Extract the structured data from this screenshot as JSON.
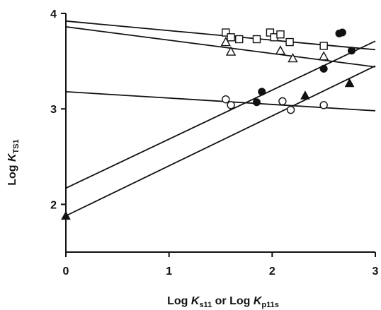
{
  "chart_data": {
    "type": "scatter",
    "xlabel": {
      "prefix": "Log ",
      "k1": "K",
      "sub1": "s11",
      "mid": " or Log ",
      "k2": "K",
      "sub2": "p11s"
    },
    "ylabel": {
      "prefix": "Log ",
      "k": "K",
      "sub": "TS1"
    },
    "xlim": [
      0,
      3
    ],
    "ylim": [
      1.5,
      4
    ],
    "x_ticks": [
      0,
      1,
      2,
      3
    ],
    "x_tick_labels": [
      "0",
      "1",
      "2",
      "3"
    ],
    "y_ticks": [
      2,
      3,
      4
    ],
    "y_tick_labels": [
      "2",
      "3",
      "4"
    ],
    "grid": false,
    "series": [
      {
        "marker": "open-square",
        "points": [
          [
            1.55,
            3.8
          ],
          [
            1.6,
            3.75
          ],
          [
            1.68,
            3.73
          ],
          [
            1.85,
            3.73
          ],
          [
            1.98,
            3.8
          ],
          [
            2.02,
            3.75
          ],
          [
            2.08,
            3.78
          ],
          [
            2.17,
            3.7
          ],
          [
            2.5,
            3.66
          ]
        ]
      },
      {
        "marker": "open-triangle",
        "points": [
          [
            1.55,
            3.7
          ],
          [
            1.6,
            3.6
          ],
          [
            2.08,
            3.61
          ],
          [
            2.2,
            3.53
          ],
          [
            2.5,
            3.55
          ]
        ]
      },
      {
        "marker": "open-circle",
        "points": [
          [
            1.55,
            3.1
          ],
          [
            1.6,
            3.04
          ],
          [
            2.1,
            3.08
          ],
          [
            2.18,
            2.99
          ],
          [
            2.5,
            3.04
          ]
        ]
      },
      {
        "marker": "filled-circle",
        "points": [
          [
            1.85,
            3.07
          ],
          [
            1.9,
            3.18
          ],
          [
            2.5,
            3.42
          ],
          [
            2.65,
            3.79
          ],
          [
            2.68,
            3.8
          ],
          [
            2.77,
            3.61
          ]
        ]
      },
      {
        "marker": "filled-triangle",
        "points": [
          [
            0.0,
            1.88
          ],
          [
            2.32,
            3.14
          ],
          [
            2.75,
            3.27
          ]
        ]
      }
    ],
    "lines": [
      {
        "x1": 0,
        "y1": 3.92,
        "x2": 3,
        "y2": 3.62
      },
      {
        "x1": 0,
        "y1": 3.86,
        "x2": 3,
        "y2": 3.44
      },
      {
        "x1": 0,
        "y1": 3.18,
        "x2": 3,
        "y2": 2.98
      },
      {
        "x1": 0,
        "y1": 2.17,
        "x2": 3,
        "y2": 3.71
      },
      {
        "x1": 0,
        "y1": 1.88,
        "x2": 3,
        "y2": 3.45
      }
    ]
  }
}
